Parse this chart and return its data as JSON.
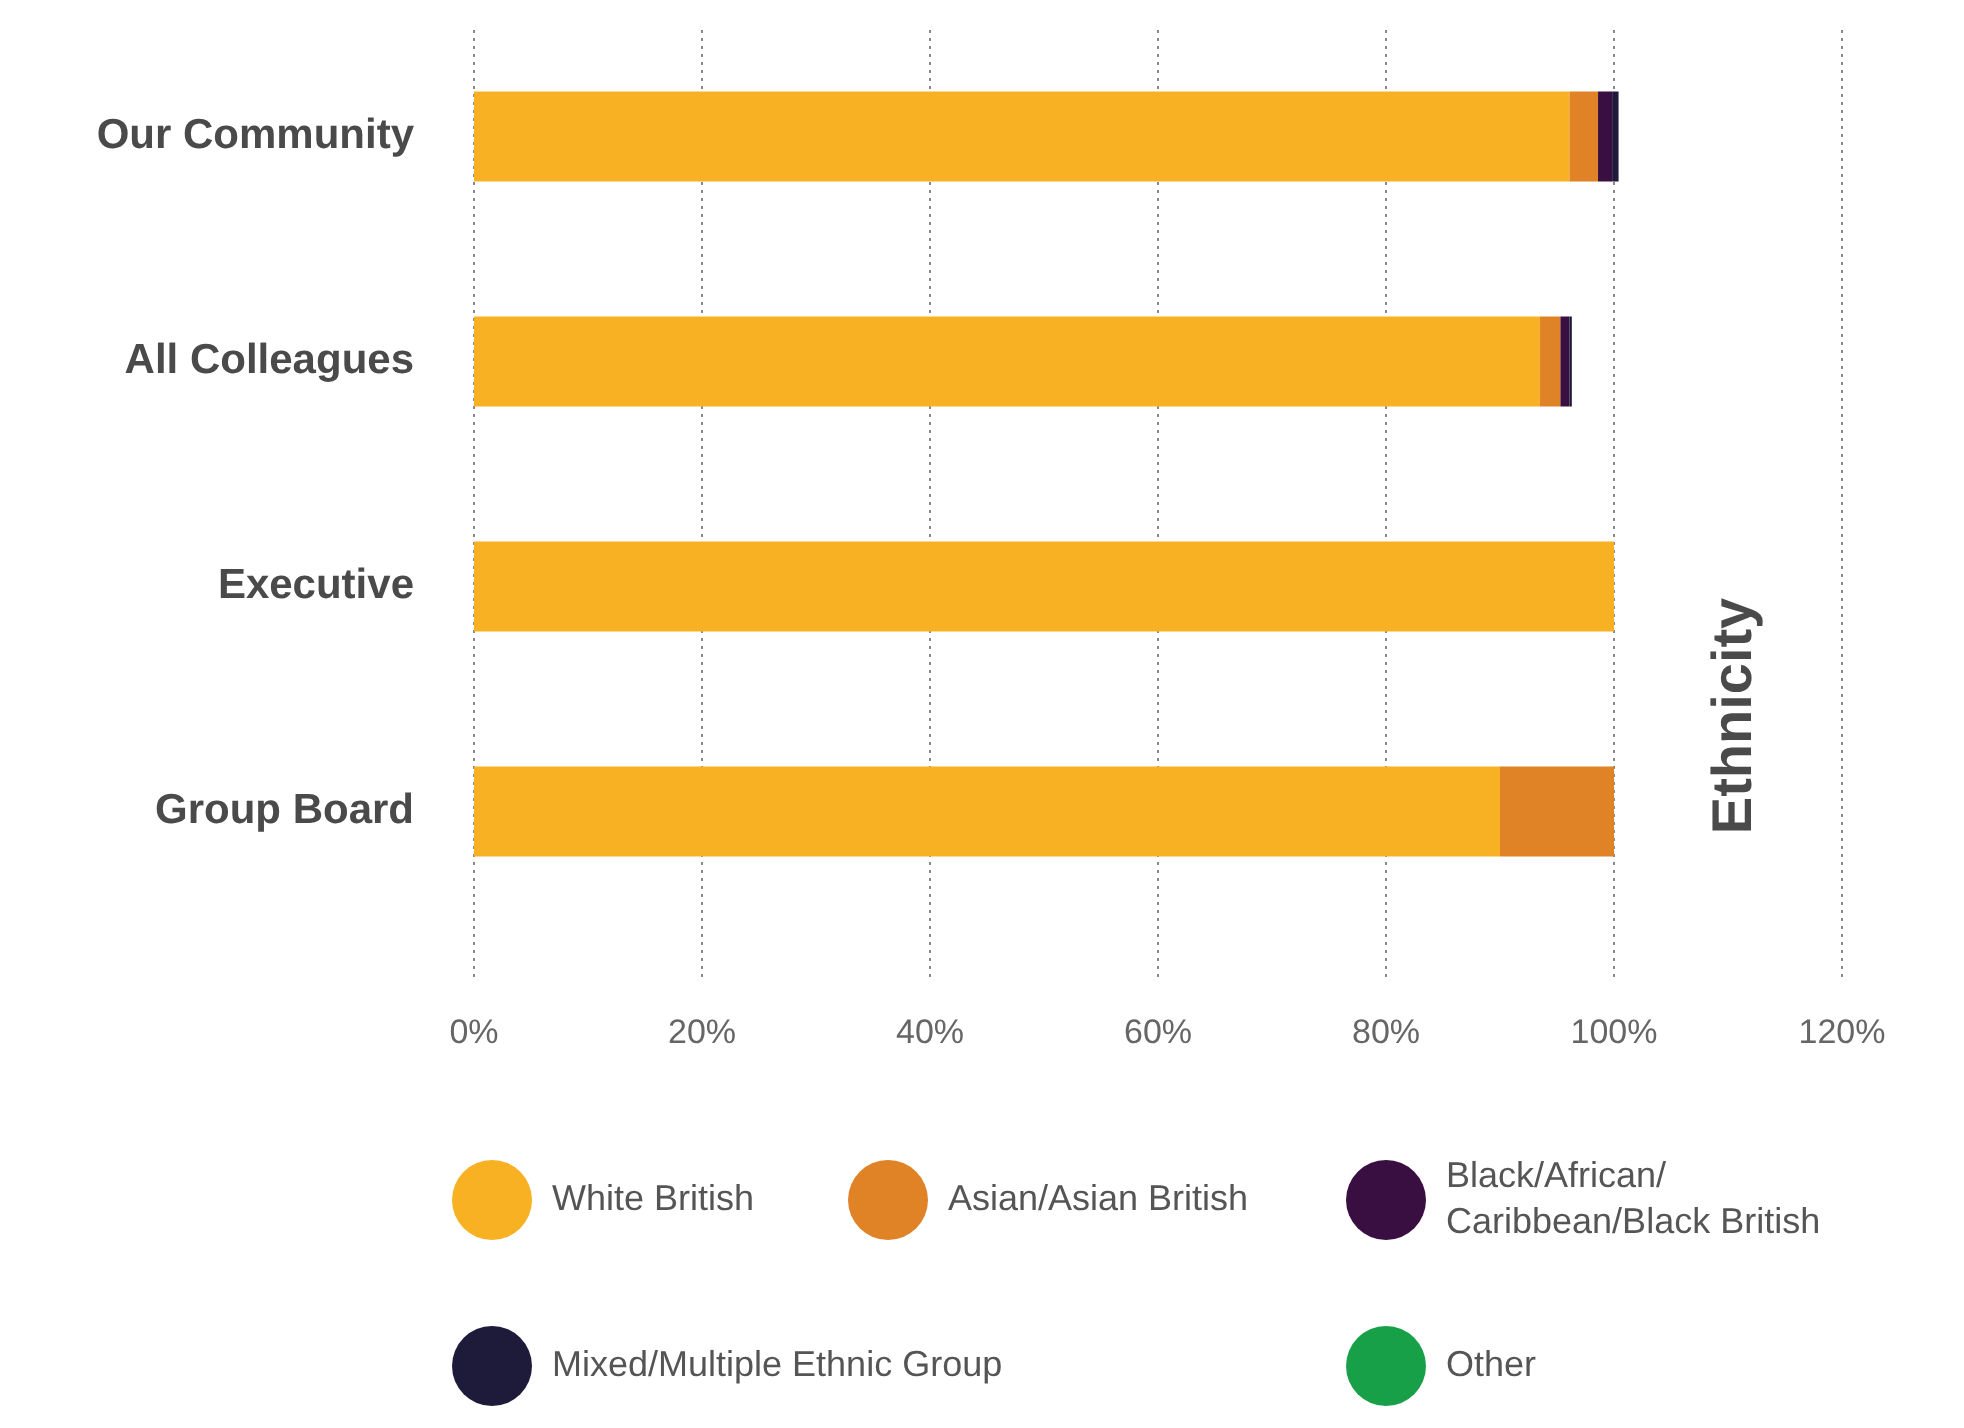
{
  "chart_data": {
    "type": "bar",
    "orientation": "horizontal",
    "stacked": true,
    "categories": [
      "Our Community",
      "All Colleagues",
      "Executive",
      "Group Board"
    ],
    "series": [
      {
        "name": "White British",
        "color": "#f9b124",
        "values": [
          96.1,
          93.5,
          100,
          90
        ]
      },
      {
        "name": "Asian/Asian British",
        "color": "#e08226",
        "values": [
          2.5,
          1.8,
          0,
          10
        ]
      },
      {
        "name": "Black/African/Caribbean/Black British",
        "color": "#380f40",
        "values": [
          1.3,
          0.8,
          0,
          0
        ]
      },
      {
        "name": "Mixed/Multiple Ethnic Group",
        "color": "#1e1a3a",
        "values": [
          0.5,
          0.2,
          0,
          0
        ]
      },
      {
        "name": "Other",
        "color": "#18a048",
        "values": [
          0,
          0,
          0,
          0
        ]
      }
    ],
    "xlim": [
      0,
      120
    ],
    "xticks": [
      {
        "value": 0,
        "label": "0%"
      },
      {
        "value": 20,
        "label": "20%"
      },
      {
        "value": 40,
        "label": "40%"
      },
      {
        "value": 60,
        "label": "60%"
      },
      {
        "value": 80,
        "label": "80%"
      },
      {
        "value": 100,
        "label": "100%"
      },
      {
        "value": 120,
        "label": "120%"
      }
    ],
    "grid": "x",
    "legend": "bottom",
    "annotations": [
      "Ethnicity"
    ]
  }
}
